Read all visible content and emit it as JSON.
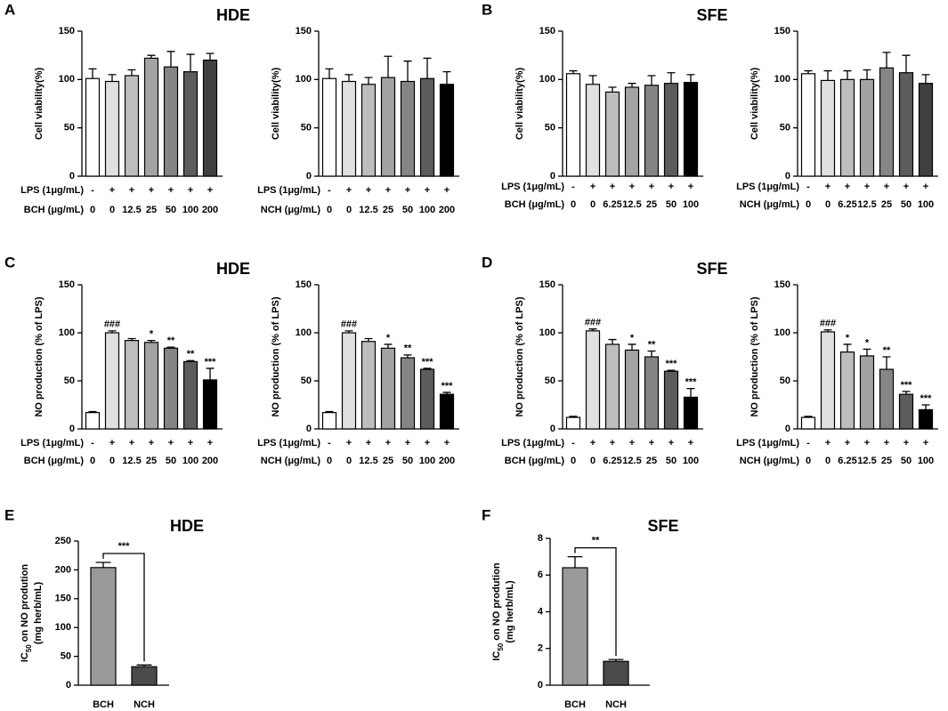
{
  "chart_data": [
    {
      "type": "bar",
      "panel": "A",
      "title": "HDE",
      "ylabel": "Cell viability(%)",
      "row_labels": [
        "LPS (1μg/mL)",
        "BCH (μg/mL)"
      ],
      "lps": [
        "-",
        "+",
        "+",
        "+",
        "+",
        "+",
        "+"
      ],
      "categories": [
        "0",
        "0",
        "12.5",
        "25",
        "50",
        "100",
        "200"
      ],
      "values": [
        101,
        98,
        104,
        122,
        113,
        108,
        120
      ],
      "errors": [
        10,
        7,
        6,
        3,
        16,
        18,
        7
      ],
      "colors": [
        "#ffffff",
        "#e0e0e0",
        "#bdbdbd",
        "#a3a3a3",
        "#858585",
        "#5c5c5c",
        "#404040"
      ],
      "ylim": [
        0,
        150
      ],
      "yticks": [
        0,
        50,
        100,
        150
      ]
    },
    {
      "type": "bar",
      "ylabel": "Cell viability(%)",
      "row_labels": [
        "LPS (1μg/mL)",
        "NCH (μg/mL)"
      ],
      "lps": [
        "-",
        "+",
        "+",
        "+",
        "+",
        "+",
        "+"
      ],
      "categories": [
        "0",
        "0",
        "12.5",
        "25",
        "50",
        "100",
        "200"
      ],
      "values": [
        101,
        98,
        95,
        102,
        98,
        101,
        95
      ],
      "errors": [
        10,
        7,
        7,
        22,
        21,
        21,
        13
      ],
      "colors": [
        "#ffffff",
        "#e0e0e0",
        "#bdbdbd",
        "#a3a3a3",
        "#858585",
        "#5c5c5c",
        "#000000"
      ],
      "ylim": [
        0,
        150
      ],
      "yticks": [
        0,
        50,
        100,
        150
      ]
    },
    {
      "type": "bar",
      "panel": "B",
      "title": "SFE",
      "ylabel": "Cell viability(%)",
      "row_labels": [
        "LPS (1μg/mL)",
        "BCH (μg/mL)"
      ],
      "lps": [
        "-",
        "+",
        "+",
        "+",
        "+",
        "+",
        "+"
      ],
      "categories": [
        "0",
        "0",
        "6.25",
        "12.5",
        "25",
        "50",
        "100"
      ],
      "values": [
        106,
        95,
        87,
        92,
        94,
        96,
        97
      ],
      "errors": [
        3,
        9,
        5,
        4,
        10,
        11,
        8
      ],
      "colors": [
        "#ffffff",
        "#e0e0e0",
        "#bdbdbd",
        "#a3a3a3",
        "#858585",
        "#5c5c5c",
        "#000000"
      ],
      "ylim": [
        0,
        150
      ],
      "yticks": [
        0,
        50,
        100,
        150
      ]
    },
    {
      "type": "bar",
      "ylabel": "Cell viability(%)",
      "row_labels": [
        "LPS (1μg/mL)",
        "NCH  (μg/mL)"
      ],
      "lps": [
        "-",
        "+",
        "+",
        "+",
        "+",
        "+",
        "+"
      ],
      "categories": [
        "0",
        "0",
        "6.25",
        "12.5",
        "25",
        "50",
        "100"
      ],
      "values": [
        106,
        99,
        100,
        100,
        112,
        107,
        96
      ],
      "errors": [
        3,
        10,
        9,
        10,
        16,
        18,
        9
      ],
      "colors": [
        "#ffffff",
        "#e0e0e0",
        "#bdbdbd",
        "#a3a3a3",
        "#858585",
        "#5c5c5c",
        "#404040"
      ],
      "ylim": [
        0,
        150
      ],
      "yticks": [
        0,
        50,
        100,
        150
      ]
    },
    {
      "type": "bar",
      "panel": "C",
      "title": "HDE",
      "ylabel": "NO production (% of LPS)",
      "row_labels": [
        "LPS (1μg/mL)",
        "BCH (μg/mL)"
      ],
      "lps": [
        "-",
        "+",
        "+",
        "+",
        "+",
        "+",
        "+"
      ],
      "categories": [
        "0",
        "0",
        "12.5",
        "25",
        "50",
        "100",
        "200"
      ],
      "values": [
        17,
        100,
        92,
        90,
        84,
        70,
        51
      ],
      "errors": [
        1,
        2,
        2,
        2,
        1,
        1,
        12
      ],
      "annotations": [
        null,
        "###",
        null,
        "*",
        "**",
        "**",
        "***"
      ],
      "colors": [
        "#ffffff",
        "#e0e0e0",
        "#bdbdbd",
        "#a3a3a3",
        "#858585",
        "#5c5c5c",
        "#000000"
      ],
      "ylim": [
        0,
        150
      ],
      "yticks": [
        0,
        50,
        100,
        150
      ]
    },
    {
      "type": "bar",
      "ylabel": "NO production (% of LPS)",
      "row_labels": [
        "LPS (1μg/mL)",
        "NCH  (μg/mL)"
      ],
      "lps": [
        "-",
        "+",
        "+",
        "+",
        "+",
        "+",
        "+"
      ],
      "categories": [
        "0",
        "0",
        "12.5",
        "25",
        "50",
        "100",
        "200"
      ],
      "values": [
        17,
        100,
        91,
        84,
        74,
        62,
        36
      ],
      "errors": [
        1,
        2,
        3,
        4,
        3,
        1,
        2
      ],
      "annotations": [
        null,
        "###",
        null,
        "*",
        "**",
        "***",
        "***"
      ],
      "colors": [
        "#ffffff",
        "#e0e0e0",
        "#bdbdbd",
        "#a3a3a3",
        "#858585",
        "#5c5c5c",
        "#000000"
      ],
      "ylim": [
        0,
        150
      ],
      "yticks": [
        0,
        50,
        100,
        150
      ]
    },
    {
      "type": "bar",
      "panel": "D",
      "title": "SFE",
      "ylabel": "NO production (% of LPS)",
      "row_labels": [
        "LPS (1μg/mL)",
        "BCH  (μg/mL)"
      ],
      "lps": [
        "-",
        "+",
        "+",
        "+",
        "+",
        "+",
        "+"
      ],
      "categories": [
        "0",
        "0",
        "6.25",
        "12.5",
        "25",
        "50",
        "100"
      ],
      "values": [
        12,
        102,
        88,
        82,
        75,
        60,
        33
      ],
      "errors": [
        1,
        2,
        5,
        6,
        6,
        1,
        9
      ],
      "annotations": [
        null,
        "###",
        null,
        "*",
        "**",
        "***",
        "***"
      ],
      "colors": [
        "#ffffff",
        "#e0e0e0",
        "#bdbdbd",
        "#a3a3a3",
        "#858585",
        "#5c5c5c",
        "#000000"
      ],
      "ylim": [
        0,
        150
      ],
      "yticks": [
        0,
        50,
        100,
        150
      ]
    },
    {
      "type": "bar",
      "ylabel": "NO production (% of LPS)",
      "row_labels": [
        "LPS (1μg/mL)",
        "NCH (μg/mL)"
      ],
      "lps": [
        "-",
        "+",
        "+",
        "+",
        "+",
        "+",
        "+"
      ],
      "categories": [
        "0",
        "0",
        "6.25",
        "12.5",
        "25",
        "50",
        "100"
      ],
      "values": [
        12,
        101,
        80,
        76,
        62,
        36,
        20
      ],
      "errors": [
        1,
        2,
        8,
        7,
        13,
        3,
        5
      ],
      "annotations": [
        null,
        "###",
        "*",
        "*",
        "**",
        "***",
        "***"
      ],
      "colors": [
        "#ffffff",
        "#e0e0e0",
        "#bdbdbd",
        "#a3a3a3",
        "#858585",
        "#5c5c5c",
        "#000000"
      ],
      "ylim": [
        0,
        150
      ],
      "yticks": [
        0,
        50,
        100,
        150
      ]
    },
    {
      "type": "bar",
      "panel": "E",
      "title": "HDE",
      "ylabel": [
        "IC",
        "50",
        " on NO prodution"
      ],
      "ylabel2": "(mg herb/mL)",
      "categories": [
        "BCH",
        "NCH"
      ],
      "values": [
        204,
        32
      ],
      "errors": [
        9,
        3
      ],
      "significance": "***",
      "colors": [
        "#999999",
        "#4a4a4a"
      ],
      "ylim": [
        0,
        250
      ],
      "yticks": [
        0,
        50,
        100,
        150,
        200,
        250
      ]
    },
    {
      "type": "bar",
      "panel": "F",
      "title": "SFE",
      "ylabel": [
        "IC",
        "50",
        " on NO prodution"
      ],
      "ylabel2": "(mg herb/mL)",
      "categories": [
        "BCH",
        "NCH"
      ],
      "values": [
        6.4,
        1.3
      ],
      "errors": [
        0.6,
        0.1
      ],
      "significance": "**",
      "colors": [
        "#999999",
        "#4a4a4a"
      ],
      "ylim": [
        0,
        8
      ],
      "yticks": [
        0,
        2,
        4,
        6,
        8
      ]
    }
  ]
}
